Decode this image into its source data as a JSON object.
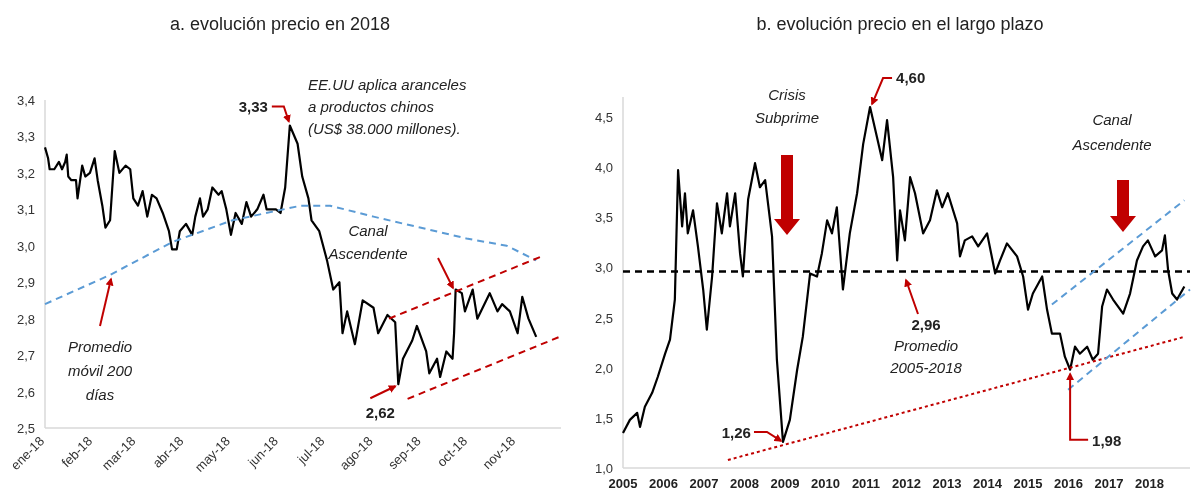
{
  "chart_data": [
    {
      "type": "line",
      "title": "a. evolución precio en 2018",
      "series": [
        {
          "color": "#000000",
          "line_style": "solid",
          "x": [
            "2018-01-01",
            "2018-01-03",
            "2018-01-04",
            "2018-01-07",
            "2018-01-10",
            "2018-01-12",
            "2018-01-14",
            "2018-01-15",
            "2018-01-16",
            "2018-01-18",
            "2018-01-21",
            "2018-01-22",
            "2018-01-25",
            "2018-01-27",
            "2018-01-30",
            "2018-02-02",
            "2018-02-04",
            "2018-02-07",
            "2018-02-09",
            "2018-02-12",
            "2018-02-15",
            "2018-02-18",
            "2018-02-22",
            "2018-02-25",
            "2018-02-27",
            "2018-03-02",
            "2018-03-05",
            "2018-03-08",
            "2018-03-11",
            "2018-03-14",
            "2018-03-18",
            "2018-03-22",
            "2018-03-24",
            "2018-03-27",
            "2018-03-29",
            "2018-04-02",
            "2018-04-06",
            "2018-04-08",
            "2018-04-11",
            "2018-04-13",
            "2018-04-16",
            "2018-04-19",
            "2018-04-23",
            "2018-04-25",
            "2018-04-28",
            "2018-05-01",
            "2018-05-04",
            "2018-05-08",
            "2018-05-11",
            "2018-05-14",
            "2018-05-18",
            "2018-05-22",
            "2018-05-24",
            "2018-05-30",
            "2018-06-02",
            "2018-06-05",
            "2018-06-08",
            "2018-06-13",
            "2018-06-16",
            "2018-06-20",
            "2018-06-22",
            "2018-06-27",
            "2018-07-02",
            "2018-07-06",
            "2018-07-10",
            "2018-07-12",
            "2018-07-15",
            "2018-07-20",
            "2018-07-25",
            "2018-08-01",
            "2018-08-04",
            "2018-08-10",
            "2018-08-15",
            "2018-08-17",
            "2018-08-20",
            "2018-08-26",
            "2018-08-29",
            "2018-09-04",
            "2018-09-06",
            "2018-09-11",
            "2018-09-13",
            "2018-09-17",
            "2018-09-21",
            "2018-09-22",
            "2018-09-23",
            "2018-09-27",
            "2018-09-29",
            "2018-10-04",
            "2018-10-07",
            "2018-10-15",
            "2018-10-20",
            "2018-10-23",
            "2018-10-28",
            "2018-11-02",
            "2018-11-05",
            "2018-11-09",
            "2018-11-14"
          ],
          "values": [
            3.27,
            3.24,
            3.21,
            3.21,
            3.23,
            3.21,
            3.23,
            3.25,
            3.19,
            3.18,
            3.18,
            3.13,
            3.22,
            3.19,
            3.2,
            3.24,
            3.18,
            3.11,
            3.05,
            3.07,
            3.26,
            3.2,
            3.22,
            3.21,
            3.13,
            3.11,
            3.15,
            3.08,
            3.14,
            3.13,
            3.09,
            3.04,
            2.99,
            2.99,
            3.04,
            3.06,
            3.03,
            3.08,
            3.13,
            3.08,
            3.1,
            3.16,
            3.14,
            3.15,
            3.1,
            3.03,
            3.09,
            3.06,
            3.12,
            3.08,
            3.1,
            3.14,
            3.1,
            3.1,
            3.09,
            3.16,
            3.33,
            3.28,
            3.19,
            3.13,
            3.07,
            3.04,
            2.96,
            2.88,
            2.9,
            2.76,
            2.82,
            2.73,
            2.85,
            2.83,
            2.76,
            2.81,
            2.79,
            2.62,
            2.69,
            2.74,
            2.78,
            2.71,
            2.65,
            2.69,
            2.64,
            2.71,
            2.69,
            2.76,
            2.88,
            2.87,
            2.82,
            2.88,
            2.8,
            2.87,
            2.82,
            2.84,
            2.82,
            2.76,
            2.86,
            2.8,
            2.75
          ]
        },
        {
          "name": "Promedio móvil 200 días",
          "color": "#5b9bd5",
          "line_style": "dashed",
          "x": [
            "2018-01-01",
            "2018-02-12",
            "2018-03-24",
            "2018-05-02",
            "2018-06-15",
            "2018-07-04",
            "2018-08-01",
            "2018-08-31",
            "2018-09-30",
            "2018-10-26",
            "2018-11-14"
          ],
          "values": [
            2.84,
            2.92,
            3.01,
            3.07,
            3.11,
            3.11,
            3.08,
            3.05,
            3.02,
            3.0,
            2.96
          ]
        },
        {
          "color": "#c00000",
          "line_style": "dashed",
          "x": [
            "2018-08-11",
            "2018-11-17"
          ],
          "values": [
            2.8,
            2.97
          ]
        },
        {
          "color": "#c00000",
          "line_style": "dashed",
          "x": [
            "2018-08-23",
            "2018-11-29"
          ],
          "values": [
            2.58,
            2.75
          ]
        }
      ],
      "xlim": [
        "2018-01-01",
        "2018-11-30"
      ],
      "xticks": [
        {
          "value": "2018-01-01",
          "label": "ene-18"
        },
        {
          "value": "2018-02-01",
          "label": "feb-18"
        },
        {
          "value": "2018-03-01",
          "label": "mar-18"
        },
        {
          "value": "2018-04-01",
          "label": "abr-18"
        },
        {
          "value": "2018-05-01",
          "label": "may-18"
        },
        {
          "value": "2018-06-01",
          "label": "jun-18"
        },
        {
          "value": "2018-07-01",
          "label": "jul-18"
        },
        {
          "value": "2018-08-01",
          "label": "ago-18"
        },
        {
          "value": "2018-09-01",
          "label": "sep-18"
        },
        {
          "value": "2018-10-01",
          "label": "oct-18"
        },
        {
          "value": "2018-11-01",
          "label": "nov-18"
        }
      ],
      "ylim": [
        2.5,
        3.4
      ],
      "yticks": [
        {
          "value": 2.5,
          "label": "2,5"
        },
        {
          "value": 2.6,
          "label": "2,6"
        },
        {
          "value": 2.7,
          "label": "2,7"
        },
        {
          "value": 2.8,
          "label": "2,8"
        },
        {
          "value": 2.9,
          "label": "2,9"
        },
        {
          "value": 3.0,
          "label": "3,0"
        },
        {
          "value": 3.1,
          "label": "3,1"
        },
        {
          "value": 3.2,
          "label": "3,2"
        },
        {
          "value": 3.3,
          "label": "3,3"
        },
        {
          "value": 3.4,
          "label": "3,4"
        }
      ],
      "annotations": [
        {
          "text": "3,33",
          "x": "2018-06-08",
          "y": 3.33
        },
        {
          "text": "2,62",
          "x": "2018-08-17",
          "y": 2.62
        },
        "EE.UU aplica aranceles a productos chinos (US$ 38.000 millones).",
        "Canal Ascendente"
      ]
    },
    {
      "type": "line",
      "title": "b. evolución precio en el largo plazo",
      "series": [
        {
          "color": "#000000",
          "line_style": "solid",
          "x": [
            2005.0,
            2005.17,
            2005.35,
            2005.42,
            2005.54,
            2005.72,
            2005.86,
            2006.04,
            2006.16,
            2006.28,
            2006.36,
            2006.46,
            2006.53,
            2006.6,
            2006.73,
            2006.85,
            2006.98,
            2007.07,
            2007.2,
            2007.32,
            2007.44,
            2007.57,
            2007.64,
            2007.77,
            2007.89,
            2007.96,
            2008.09,
            2008.26,
            2008.38,
            2008.51,
            2008.68,
            2008.8,
            2008.95,
            2009.12,
            2009.3,
            2009.44,
            2009.62,
            2009.79,
            2009.91,
            2010.04,
            2010.16,
            2010.28,
            2010.43,
            2010.6,
            2010.78,
            2010.93,
            2011.1,
            2011.27,
            2011.4,
            2011.52,
            2011.67,
            2011.77,
            2011.84,
            2011.96,
            2012.09,
            2012.21,
            2012.41,
            2012.58,
            2012.75,
            2012.88,
            2013.02,
            2013.25,
            2013.32,
            2013.44,
            2013.62,
            2013.77,
            2013.99,
            2014.19,
            2014.31,
            2014.48,
            2014.73,
            2014.88,
            2015.0,
            2015.12,
            2015.35,
            2015.47,
            2015.59,
            2015.79,
            2015.91,
            2016.04,
            2016.16,
            2016.28,
            2016.46,
            2016.6,
            2016.73,
            2016.83,
            2016.95,
            2017.1,
            2017.35,
            2017.52,
            2017.69,
            2017.84,
            2017.96,
            2018.14,
            2018.31,
            2018.38,
            2018.46,
            2018.56,
            2018.68,
            2018.86
          ],
          "values": [
            1.35,
            1.48,
            1.55,
            1.41,
            1.61,
            1.75,
            1.91,
            2.14,
            2.28,
            2.68,
            3.97,
            3.41,
            3.74,
            3.34,
            3.57,
            3.21,
            2.78,
            2.38,
            2.91,
            3.64,
            3.34,
            3.74,
            3.41,
            3.74,
            3.14,
            2.91,
            3.68,
            4.04,
            3.8,
            3.87,
            3.31,
            2.08,
            1.26,
            1.48,
            1.98,
            2.31,
            2.94,
            2.91,
            3.14,
            3.47,
            3.34,
            3.6,
            2.78,
            3.34,
            3.74,
            4.23,
            4.6,
            4.3,
            4.07,
            4.47,
            3.9,
            3.07,
            3.57,
            3.27,
            3.9,
            3.74,
            3.34,
            3.47,
            3.77,
            3.6,
            3.74,
            3.44,
            3.11,
            3.27,
            3.31,
            3.21,
            3.34,
            2.94,
            3.07,
            3.24,
            3.11,
            2.91,
            2.58,
            2.74,
            2.91,
            2.58,
            2.34,
            2.34,
            2.11,
            1.98,
            2.21,
            2.14,
            2.21,
            2.08,
            2.14,
            2.61,
            2.78,
            2.68,
            2.54,
            2.74,
            3.07,
            3.21,
            3.27,
            3.11,
            3.17,
            3.32,
            2.97,
            2.74,
            2.68,
            2.81
          ]
        },
        {
          "color": "#c00000",
          "line_style": "dotted",
          "x": [
            2007.59,
            2018.88
          ],
          "values": [
            1.08,
            2.31
          ]
        },
        {
          "color": "#5b9bd5",
          "line_style": "dashed",
          "x": [
            2015.59,
            2018.86
          ],
          "values": [
            2.63,
            3.67
          ]
        },
        {
          "color": "#5b9bd5",
          "line_style": "dashed",
          "x": [
            2015.99,
            2019.0
          ],
          "values": [
            1.78,
            2.78
          ]
        }
      ],
      "xlim": [
        2005,
        2019
      ],
      "xticks": [
        2005,
        2006,
        2007,
        2008,
        2009,
        2010,
        2011,
        2012,
        2013,
        2014,
        2015,
        2016,
        2017,
        2018
      ],
      "ylim": [
        1.0,
        4.7
      ],
      "yticks": [
        {
          "value": 1.0,
          "label": "1,0"
        },
        {
          "value": 1.5,
          "label": "1,5"
        },
        {
          "value": 2.0,
          "label": "2,0"
        },
        {
          "value": 2.5,
          "label": "2,5"
        },
        {
          "value": 3.0,
          "label": "3,0"
        },
        {
          "value": 3.5,
          "label": "3,5"
        },
        {
          "value": 4.0,
          "label": "4,0"
        },
        {
          "value": 4.5,
          "label": "4,5"
        }
      ],
      "ref_lines": [
        {
          "axis": "y",
          "value": 2.96,
          "label": "2,96",
          "color": "#000000",
          "line_style": "dashed"
        }
      ],
      "annotations": [
        "Crisis Subprime",
        "Canal Ascendente",
        "Promedio 2005-2018",
        {
          "text": "4,60",
          "x": 2011.1,
          "y": 4.6
        },
        {
          "text": "1,26",
          "x": 2008.95,
          "y": 1.26
        },
        {
          "text": "1,98",
          "x": 2016.04,
          "y": 1.98
        }
      ]
    }
  ]
}
